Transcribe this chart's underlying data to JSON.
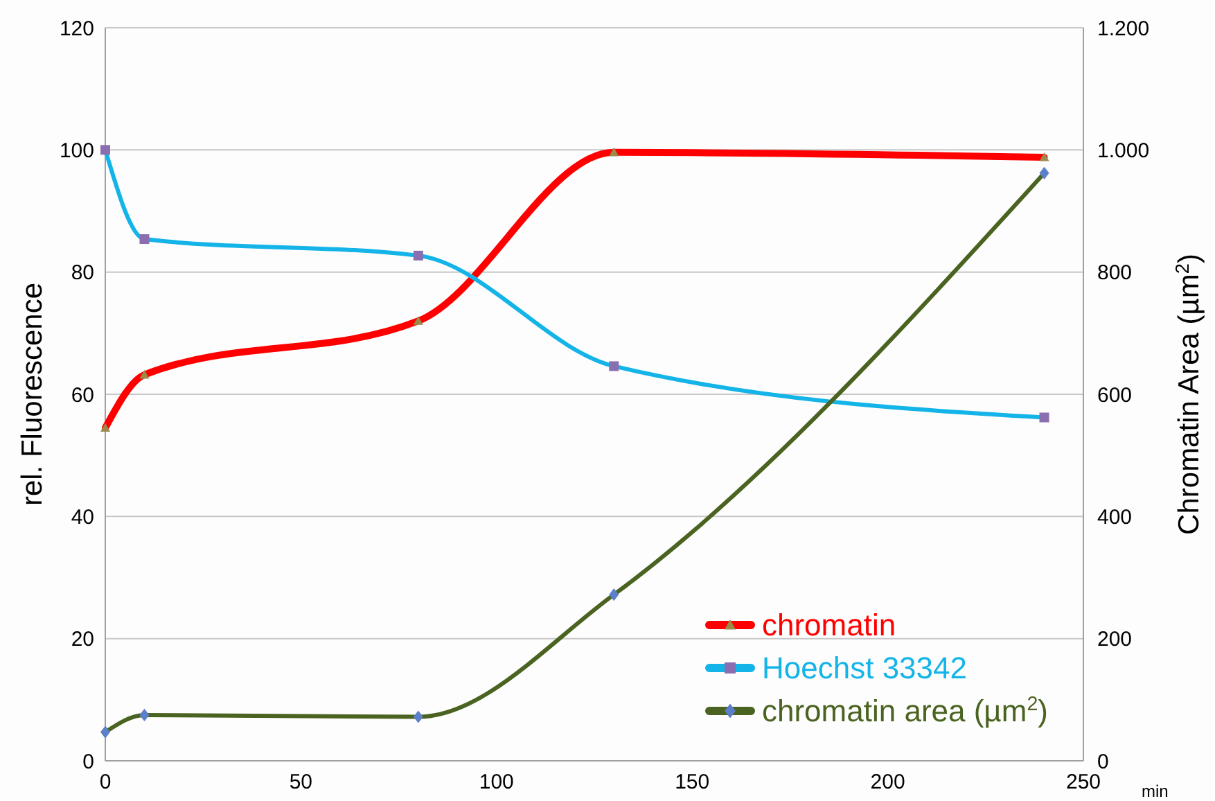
{
  "chart_data": {
    "type": "line",
    "xlabel": "min",
    "ylabel": "rel. Fluorescence",
    "y2label": "Chromatin Area (µm$^{2}$)",
    "x": [
      0,
      10,
      80,
      130,
      240
    ],
    "xlim": [
      0,
      250
    ],
    "xticks": [
      0,
      50,
      100,
      150,
      200,
      250
    ],
    "ylim": [
      0,
      120
    ],
    "yticks": [
      0,
      20,
      40,
      60,
      80,
      100,
      120
    ],
    "y2lim": [
      0,
      1200
    ],
    "y2ticks": [
      0,
      200,
      400,
      600,
      800,
      {
        "value": 1000,
        "label": "1.000"
      },
      {
        "value": 1200,
        "label": "1.200"
      }
    ],
    "grid": "y",
    "legend": "bottom right",
    "line_style": "solid",
    "series": [
      {
        "name": "chromatin",
        "color": "#ff0000",
        "marker": "triangle",
        "values": [
          54.5,
          63.2,
          72,
          99.6,
          98.8
        ]
      },
      {
        "name": "Hoechst 33342",
        "color": "#14b4e8",
        "marker": "square",
        "values": [
          100,
          85.4,
          82.7,
          64.6,
          56.2
        ]
      },
      {
        "name": "chromatin area (µm$^{2}$)",
        "color": "#4a6320",
        "marker": "diamond",
        "axis": "y2",
        "values": [
          47,
          75,
          72,
          272,
          962
        ]
      }
    ]
  }
}
